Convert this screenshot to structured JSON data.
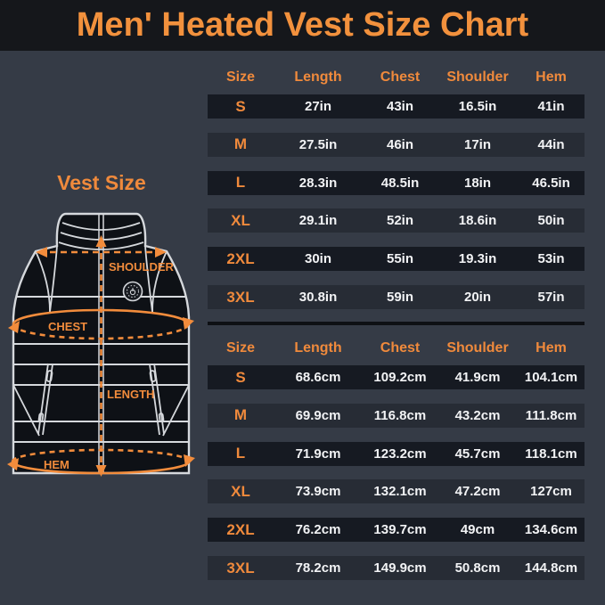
{
  "page": {
    "title": "Men' Heated Vest Size Chart"
  },
  "vest_panel": {
    "title": "Vest Size",
    "labels": {
      "shoulder": "SHOULDER",
      "chest": "CHEST",
      "length": "LENGTH",
      "hem": "HEM"
    }
  },
  "colors": {
    "accent_orange": "#F08A3C",
    "page_bg": "#353B46",
    "title_band_bg": "#15171B",
    "row_dark": "#161A22",
    "row_medium": "#272C35",
    "separator": "#0E1014",
    "text_light": "#F2F3F5",
    "vest_outline": "#D5D8DC",
    "vest_fill": "#0E1116"
  },
  "chart_data": [
    {
      "type": "table",
      "unit": "inches",
      "headers": [
        "Size",
        "Length",
        "Chest",
        "Shoulder",
        "Hem"
      ],
      "rows": [
        [
          "S",
          "27in",
          "43in",
          "16.5in",
          "41in"
        ],
        [
          "M",
          "27.5in",
          "46in",
          "17in",
          "44in"
        ],
        [
          "L",
          "28.3in",
          "48.5in",
          "18in",
          "46.5in"
        ],
        [
          "XL",
          "29.1in",
          "52in",
          "18.6in",
          "50in"
        ],
        [
          "2XL",
          "30in",
          "55in",
          "19.3in",
          "53in"
        ],
        [
          "3XL",
          "30.8in",
          "59in",
          "20in",
          "57in"
        ]
      ]
    },
    {
      "type": "table",
      "unit": "centimeters",
      "headers": [
        "Size",
        "Length",
        "Chest",
        "Shoulder",
        "Hem"
      ],
      "rows": [
        [
          "S",
          "68.6cm",
          "109.2cm",
          "41.9cm",
          "104.1cm"
        ],
        [
          "M",
          "69.9cm",
          "116.8cm",
          "43.2cm",
          "111.8cm"
        ],
        [
          "L",
          "71.9cm",
          "123.2cm",
          "45.7cm",
          "118.1cm"
        ],
        [
          "XL",
          "73.9cm",
          "132.1cm",
          "47.2cm",
          "127cm"
        ],
        [
          "2XL",
          "76.2cm",
          "139.7cm",
          "49cm",
          "134.6cm"
        ],
        [
          "3XL",
          "78.2cm",
          "149.9cm",
          "50.8cm",
          "144.8cm"
        ]
      ]
    }
  ]
}
